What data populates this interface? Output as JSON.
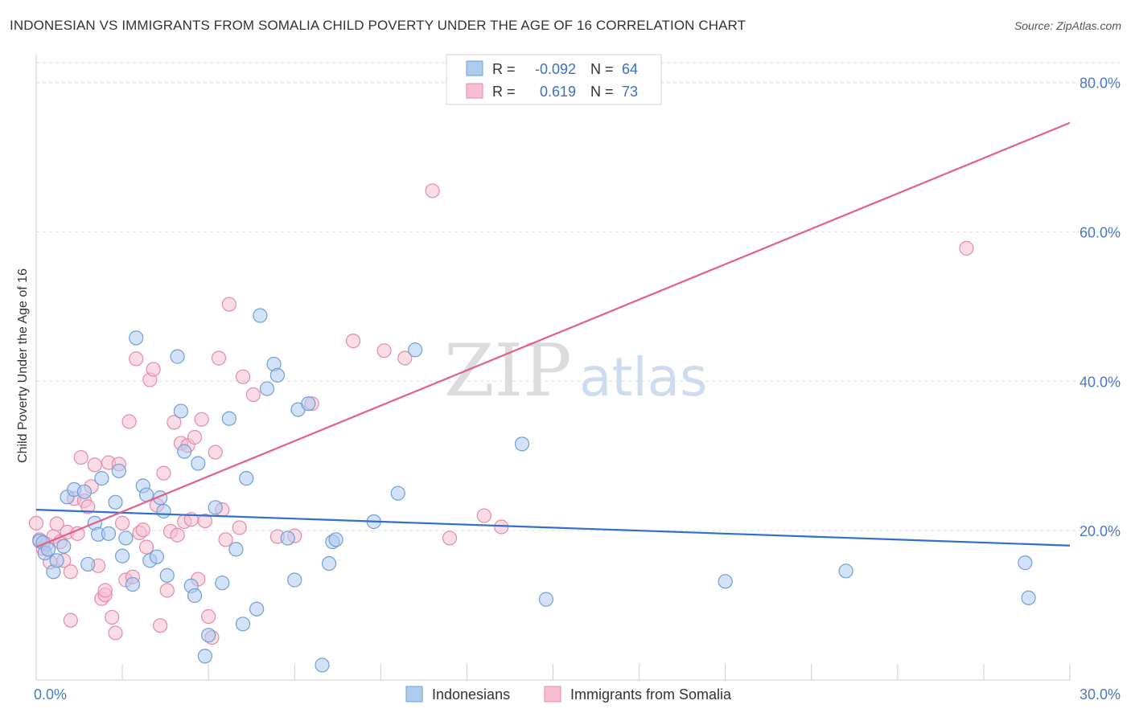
{
  "title": "INDONESIAN VS IMMIGRANTS FROM SOMALIA CHILD POVERTY UNDER THE AGE OF 16 CORRELATION CHART",
  "source": "Source: ZipAtlas.com",
  "watermark": {
    "zip": "ZIP",
    "atlas": "atlas"
  },
  "colors": {
    "indonesians_fill": "#aecbf0",
    "indonesians_stroke": "#6f9fd8",
    "indonesians_line": "#2f6fcf",
    "somalia_fill": "#f6bfd0",
    "somalia_stroke": "#e68aa8",
    "somalia_line": "#e0608a",
    "grid": "#dddddd",
    "tick_text": "#4a78c8"
  },
  "legend": {
    "rows": [
      {
        "r_label": "R =",
        "r_value": "-0.092",
        "n_label": "N =",
        "n_value": "64"
      },
      {
        "r_label": "R =",
        "r_value": "0.619",
        "n_label": "N =",
        "n_value": "73"
      }
    ]
  },
  "chart_data": {
    "type": "scatter",
    "title": "INDONESIAN VS IMMIGRANTS FROM SOMALIA CHILD POVERTY UNDER THE AGE OF 16 CORRELATION CHART",
    "xlabel": "",
    "ylabel": "Child Poverty Under the Age of 16",
    "xlim": [
      0,
      30
    ],
    "ylim": [
      0,
      82
    ],
    "x_ticks": [
      {
        "value": 0,
        "label": "0.0%"
      },
      {
        "value": 30,
        "label": "30.0%"
      }
    ],
    "y_ticks": [
      {
        "value": 20,
        "label": "20.0%"
      },
      {
        "value": 40,
        "label": "40.0%"
      },
      {
        "value": 60,
        "label": "60.0%"
      },
      {
        "value": 80,
        "label": "80.0%"
      }
    ],
    "grid": true,
    "legend_position": "top-center",
    "series": [
      {
        "name": "Indonesians",
        "r": -0.092,
        "n": 64,
        "trend": {
          "x": [
            0,
            30
          ],
          "y": [
            22.8,
            18.0
          ]
        },
        "points": [
          [
            0.1,
            18.6
          ],
          [
            0.2,
            18.4
          ],
          [
            0.25,
            17.0
          ],
          [
            0.35,
            17.5
          ],
          [
            0.5,
            14.5
          ],
          [
            0.6,
            16.0
          ],
          [
            0.8,
            17.9
          ],
          [
            0.9,
            24.5
          ],
          [
            1.1,
            25.5
          ],
          [
            1.4,
            25.2
          ],
          [
            1.5,
            15.5
          ],
          [
            1.7,
            21.0
          ],
          [
            1.8,
            19.5
          ],
          [
            1.9,
            27.0
          ],
          [
            2.1,
            19.6
          ],
          [
            2.3,
            23.8
          ],
          [
            2.4,
            28.0
          ],
          [
            2.5,
            16.6
          ],
          [
            2.6,
            19.0
          ],
          [
            2.8,
            12.8
          ],
          [
            2.9,
            45.8
          ],
          [
            3.1,
            26.0
          ],
          [
            3.2,
            24.8
          ],
          [
            3.3,
            16.0
          ],
          [
            3.5,
            16.5
          ],
          [
            3.6,
            24.4
          ],
          [
            3.7,
            22.6
          ],
          [
            3.8,
            14.0
          ],
          [
            4.1,
            43.3
          ],
          [
            4.2,
            36.0
          ],
          [
            4.3,
            30.6
          ],
          [
            4.5,
            12.6
          ],
          [
            4.6,
            11.3
          ],
          [
            4.7,
            29.0
          ],
          [
            4.9,
            3.2
          ],
          [
            5.0,
            6.0
          ],
          [
            5.2,
            23.1
          ],
          [
            5.4,
            13.0
          ],
          [
            5.6,
            35.0
          ],
          [
            5.8,
            17.5
          ],
          [
            6.0,
            7.5
          ],
          [
            6.1,
            27.0
          ],
          [
            6.4,
            9.5
          ],
          [
            6.5,
            48.8
          ],
          [
            6.7,
            39.0
          ],
          [
            6.9,
            42.3
          ],
          [
            7.0,
            40.8
          ],
          [
            7.3,
            19.0
          ],
          [
            7.5,
            13.4
          ],
          [
            7.6,
            36.2
          ],
          [
            7.9,
            37.0
          ],
          [
            8.3,
            2.0
          ],
          [
            8.5,
            15.6
          ],
          [
            8.6,
            18.5
          ],
          [
            8.7,
            18.8
          ],
          [
            9.8,
            21.2
          ],
          [
            10.5,
            25.0
          ],
          [
            11.0,
            44.2
          ],
          [
            14.1,
            31.6
          ],
          [
            14.8,
            10.8
          ],
          [
            20.0,
            13.2
          ],
          [
            23.5,
            14.6
          ],
          [
            28.7,
            15.7
          ],
          [
            28.8,
            11.0
          ]
        ]
      },
      {
        "name": "Immigrants from Somalia",
        "r": 0.619,
        "n": 73,
        "trend": {
          "x": [
            0,
            30
          ],
          "y": [
            17.8,
            74.6
          ]
        },
        "points": [
          [
            0.0,
            21.0
          ],
          [
            0.1,
            18.8
          ],
          [
            0.2,
            17.6
          ],
          [
            0.3,
            18.2
          ],
          [
            0.4,
            15.8
          ],
          [
            0.5,
            19.2
          ],
          [
            0.6,
            20.9
          ],
          [
            0.7,
            18.5
          ],
          [
            0.8,
            16.0
          ],
          [
            0.9,
            19.8
          ],
          [
            1.0,
            14.5
          ],
          [
            1.1,
            24.3
          ],
          [
            1.2,
            19.6
          ],
          [
            1.3,
            29.8
          ],
          [
            1.4,
            24.0
          ],
          [
            1.5,
            23.2
          ],
          [
            1.6,
            25.9
          ],
          [
            1.7,
            28.8
          ],
          [
            1.8,
            15.3
          ],
          [
            1.9,
            10.9
          ],
          [
            2.0,
            11.4
          ],
          [
            2.1,
            29.1
          ],
          [
            2.2,
            8.4
          ],
          [
            2.3,
            6.3
          ],
          [
            2.4,
            28.9
          ],
          [
            2.5,
            21.0
          ],
          [
            2.6,
            13.4
          ],
          [
            2.7,
            34.6
          ],
          [
            2.8,
            13.8
          ],
          [
            2.9,
            43.0
          ],
          [
            3.0,
            19.7
          ],
          [
            3.1,
            20.1
          ],
          [
            3.2,
            17.8
          ],
          [
            3.3,
            40.2
          ],
          [
            3.4,
            41.6
          ],
          [
            3.5,
            23.4
          ],
          [
            3.6,
            7.3
          ],
          [
            3.7,
            27.7
          ],
          [
            3.8,
            12.0
          ],
          [
            3.9,
            19.9
          ],
          [
            4.0,
            34.5
          ],
          [
            4.1,
            19.4
          ],
          [
            4.2,
            31.7
          ],
          [
            4.3,
            21.2
          ],
          [
            4.4,
            31.4
          ],
          [
            4.5,
            21.5
          ],
          [
            4.6,
            32.5
          ],
          [
            4.7,
            13.5
          ],
          [
            4.8,
            34.9
          ],
          [
            4.9,
            21.3
          ],
          [
            5.0,
            8.5
          ],
          [
            5.1,
            5.7
          ],
          [
            5.2,
            30.5
          ],
          [
            5.3,
            43.1
          ],
          [
            5.4,
            22.8
          ],
          [
            5.5,
            18.8
          ],
          [
            5.6,
            50.3
          ],
          [
            5.9,
            20.4
          ],
          [
            6.0,
            40.6
          ],
          [
            6.3,
            38.2
          ],
          [
            7.0,
            19.2
          ],
          [
            7.5,
            19.3
          ],
          [
            8.0,
            37.0
          ],
          [
            9.2,
            45.4
          ],
          [
            10.1,
            44.1
          ],
          [
            10.7,
            43.1
          ],
          [
            11.5,
            65.5
          ],
          [
            12.0,
            19.0
          ],
          [
            13.0,
            22.0
          ],
          [
            13.5,
            20.5
          ],
          [
            27.0,
            57.8
          ],
          [
            1.0,
            8.0
          ],
          [
            2.0,
            12.0
          ]
        ]
      }
    ]
  },
  "bottom_legend": {
    "items": [
      {
        "label": "Indonesians"
      },
      {
        "label": "Immigrants from Somalia"
      }
    ]
  }
}
